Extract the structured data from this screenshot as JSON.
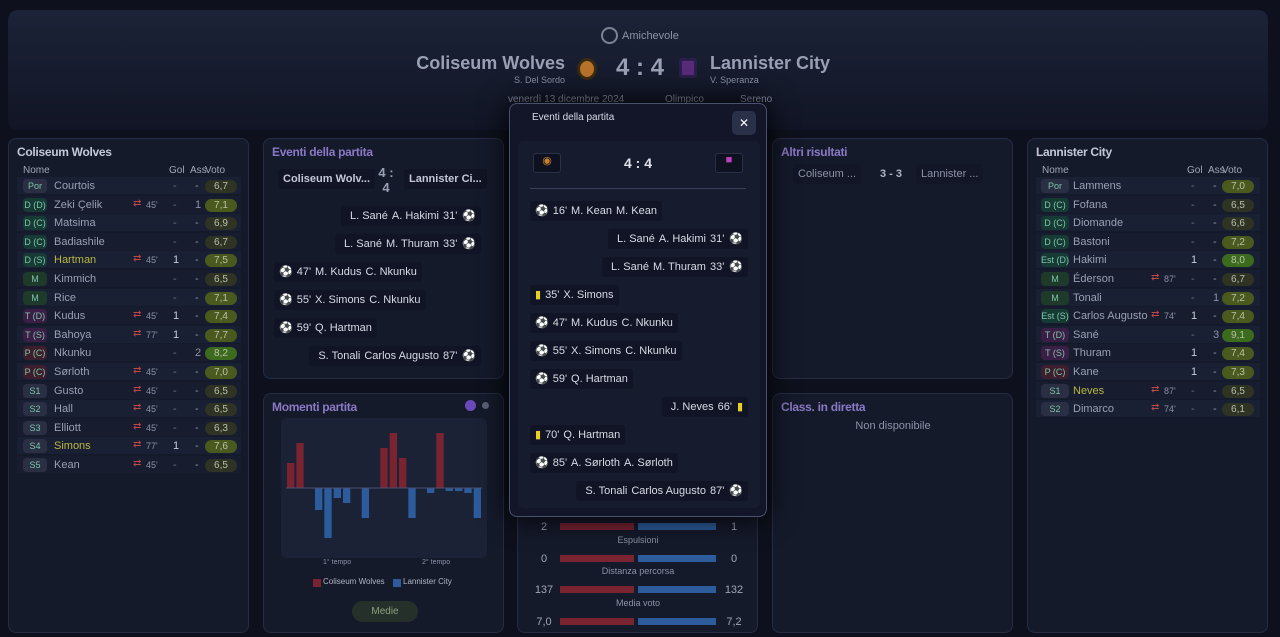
{
  "header": {
    "competition": "Amichevole",
    "home_team": "Coliseum Wolves",
    "home_coach": "S. Del Sordo",
    "score": "4 : 4",
    "away_team": "Lannister City",
    "away_coach": "V. Speranza",
    "date": "venerdì 13 dicembre 2024",
    "stadium": "Olimpico",
    "weather": "Sereno"
  },
  "columns": [
    "Nome",
    "Gol",
    "Ass",
    "Voto"
  ],
  "home_panel": {
    "title": "Coliseum Wolves",
    "players": [
      {
        "pos": "Por",
        "name": "Courtois",
        "sub": null,
        "gol": "-",
        "ass": "-",
        "voto": "6,7"
      },
      {
        "pos": "D (D)",
        "name": "Zeki Çelik",
        "sub": "45'",
        "gol": "-",
        "ass": "1",
        "voto": "7,1"
      },
      {
        "pos": "D (C)",
        "name": "Matsima",
        "sub": null,
        "gol": "-",
        "ass": "-",
        "voto": "6,9"
      },
      {
        "pos": "D (C)",
        "name": "Badiashile",
        "sub": null,
        "gol": "-",
        "ass": "-",
        "voto": "6,7"
      },
      {
        "pos": "D (S)",
        "name": "Hartman",
        "sub": "45'",
        "gol": "1",
        "ass": "-",
        "voto": "7,5",
        "highlight": true
      },
      {
        "pos": "M",
        "name": "Kimmich",
        "sub": null,
        "gol": "-",
        "ass": "-",
        "voto": "6,5"
      },
      {
        "pos": "M",
        "name": "Rice",
        "sub": null,
        "gol": "-",
        "ass": "-",
        "voto": "7,1"
      },
      {
        "pos": "T (D)",
        "name": "Kudus",
        "sub": "45'",
        "gol": "1",
        "ass": "-",
        "voto": "7,4"
      },
      {
        "pos": "T (S)",
        "name": "Bahoya",
        "sub": "77'",
        "gol": "1",
        "ass": "-",
        "voto": "7,7"
      },
      {
        "pos": "P (C)",
        "name": "Nkunku",
        "sub": null,
        "gol": "-",
        "ass": "2",
        "voto": "8,2"
      },
      {
        "pos": "P (C)",
        "name": "Sørloth",
        "sub": "45'",
        "gol": "-",
        "ass": "-",
        "voto": "7,0"
      },
      {
        "pos": "S1",
        "name": "Gusto",
        "sub": "45'",
        "gol": "-",
        "ass": "-",
        "voto": "6,5"
      },
      {
        "pos": "S2",
        "name": "Hall",
        "sub": "45'",
        "gol": "-",
        "ass": "-",
        "voto": "6,5"
      },
      {
        "pos": "S3",
        "name": "Elliott",
        "sub": "45'",
        "gol": "-",
        "ass": "-",
        "voto": "6,3"
      },
      {
        "pos": "S4",
        "name": "Simons",
        "sub": "77'",
        "gol": "1",
        "ass": "-",
        "voto": "7,6",
        "highlight": true
      },
      {
        "pos": "S5",
        "name": "Kean",
        "sub": "45'",
        "gol": "-",
        "ass": "-",
        "voto": "6,5"
      }
    ]
  },
  "away_panel": {
    "title": "Lannister City",
    "players": [
      {
        "pos": "Por",
        "name": "Lammens",
        "sub": null,
        "gol": "-",
        "ass": "-",
        "voto": "7,0"
      },
      {
        "pos": "D (C)",
        "name": "Fofana",
        "sub": null,
        "gol": "-",
        "ass": "-",
        "voto": "6,5"
      },
      {
        "pos": "D (C)",
        "name": "Diomande",
        "sub": null,
        "gol": "-",
        "ass": "-",
        "voto": "6,6"
      },
      {
        "pos": "D (C)",
        "name": "Bastoni",
        "sub": null,
        "gol": "-",
        "ass": "-",
        "voto": "7,2"
      },
      {
        "pos": "Est (D)",
        "name": "Hakimi",
        "sub": null,
        "gol": "1",
        "ass": "-",
        "voto": "8,0"
      },
      {
        "pos": "M",
        "name": "Éderson",
        "sub": "87'",
        "gol": "-",
        "ass": "-",
        "voto": "6,7"
      },
      {
        "pos": "M",
        "name": "Tonali",
        "sub": null,
        "gol": "-",
        "ass": "1",
        "voto": "7,2"
      },
      {
        "pos": "Est (S)",
        "name": "Carlos Augusto",
        "sub": "74'",
        "gol": "1",
        "ass": "-",
        "voto": "7,4"
      },
      {
        "pos": "T (D)",
        "name": "Sané",
        "sub": null,
        "gol": "-",
        "ass": "3",
        "voto": "9,1"
      },
      {
        "pos": "T (S)",
        "name": "Thuram",
        "sub": null,
        "gol": "1",
        "ass": "-",
        "voto": "7,4"
      },
      {
        "pos": "P (C)",
        "name": "Kane",
        "sub": null,
        "gol": "1",
        "ass": "-",
        "voto": "7,3"
      },
      {
        "pos": "S1",
        "name": "Neves",
        "sub": "87'",
        "gol": "-",
        "ass": "-",
        "voto": "6,5",
        "highlight": true
      },
      {
        "pos": "S2",
        "name": "Dimarco",
        "sub": "74'",
        "gol": "-",
        "ass": "-",
        "voto": "6,1"
      }
    ]
  },
  "events_panel": {
    "title": "Eventi della partita",
    "home_short": "Coliseum Wolv...",
    "away_short": "Lannister Ci..."
  },
  "others_panel": {
    "title": "Altri risultati",
    "home": "Coliseum ...",
    "score": "3 - 3",
    "away": "Lannister ..."
  },
  "table_panel": {
    "title": "Class. in diretta",
    "text": "Non disponibile"
  },
  "momentum_panel": {
    "title": "Momenti partita",
    "values": [
      25,
      45,
      0,
      -22,
      -50,
      -10,
      -15,
      0,
      -30,
      0,
      40,
      55,
      30,
      -30,
      0,
      -5,
      55,
      -3,
      -3,
      -5,
      -30
    ],
    "first_half": "1° tempo",
    "second_half": "2° tempo",
    "button": "Medie"
  },
  "stats": [
    {
      "label": null,
      "home": "2",
      "away": "1"
    },
    {
      "label": "Espulsioni",
      "home": "0",
      "away": "0"
    },
    {
      "label": "Distanza percorsa",
      "home": "137",
      "away": "132"
    },
    {
      "label": "Media voto",
      "home": "7,0",
      "away": "7,2"
    }
  ],
  "modal": {
    "title": "Eventi della partita",
    "close": "✕",
    "events": [
      {
        "side": "home",
        "type": "own_goal",
        "minute": "16'",
        "player": "M. Kean",
        "extra": "M. Kean"
      },
      {
        "side": "away",
        "type": "goal",
        "minute": "31'",
        "player": "L. Sané",
        "extra": "A. Hakimi"
      },
      {
        "side": "away",
        "type": "goal",
        "minute": "33'",
        "player": "L. Sané",
        "extra": "M. Thuram"
      },
      {
        "side": "home",
        "type": "yellow",
        "minute": "35'",
        "player": "X. Simons",
        "extra": null
      },
      {
        "side": "home",
        "type": "goal",
        "minute": "47'",
        "player": "M. Kudus",
        "extra": "C. Nkunku"
      },
      {
        "side": "home",
        "type": "goal",
        "minute": "55'",
        "player": "X. Simons",
        "extra": "C. Nkunku"
      },
      {
        "side": "home",
        "type": "goal",
        "minute": "59'",
        "player": "Q. Hartman",
        "extra": null
      },
      {
        "side": "away",
        "type": "yellow",
        "minute": "66'",
        "player": "J. Neves",
        "extra": null
      },
      {
        "side": "home",
        "type": "yellow",
        "minute": "70'",
        "player": "Q. Hartman",
        "extra": null
      },
      {
        "side": "home",
        "type": "own_goal",
        "minute": "85'",
        "player": "A. Sørloth",
        "extra": "A. Sørloth"
      },
      {
        "side": "away",
        "type": "goal",
        "minute": "87'",
        "player": "S. Tonali",
        "extra": "Carlos Augusto"
      }
    ]
  }
}
